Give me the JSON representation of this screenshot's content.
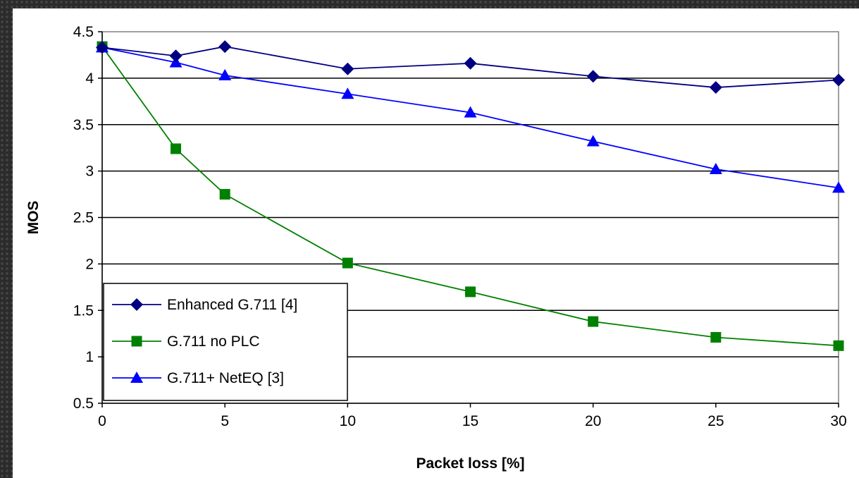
{
  "chart_data": {
    "type": "line",
    "xlabel": "Packet loss [%]",
    "ylabel": "MOS",
    "xlim": [
      0,
      30
    ],
    "ylim": [
      0.5,
      4.5
    ],
    "x_ticks": [
      0,
      5,
      10,
      15,
      20,
      25,
      30
    ],
    "y_ticks": [
      0.5,
      1,
      1.5,
      2,
      2.5,
      3,
      3.5,
      4,
      4.5
    ],
    "y_tick_labels": [
      "0.5",
      "1",
      "1.5",
      "2",
      "2.5",
      "3",
      "3.5",
      "4",
      "4.5"
    ],
    "grid": "horizontal",
    "legend_position": "bottom-left",
    "series": [
      {
        "name": "Enhanced G.711 [4]",
        "marker": "diamond",
        "color": "#000080",
        "x": [
          0,
          3,
          5,
          10,
          15,
          20,
          25,
          30
        ],
        "values": [
          4.33,
          4.24,
          4.34,
          4.1,
          4.16,
          4.02,
          3.9,
          3.98
        ]
      },
      {
        "name": "G.711 no PLC",
        "marker": "square",
        "color": "#008000",
        "x": [
          0,
          3,
          5,
          10,
          15,
          20,
          25,
          30
        ],
        "values": [
          4.34,
          3.24,
          2.75,
          2.01,
          1.7,
          1.38,
          1.21,
          1.12
        ]
      },
      {
        "name": "G.711+ NetEQ [3]",
        "marker": "triangle",
        "color": "#0000ff",
        "x": [
          0,
          3,
          5,
          10,
          15,
          20,
          25,
          30
        ],
        "values": [
          4.33,
          4.17,
          4.03,
          3.83,
          3.63,
          3.32,
          3.02,
          2.82
        ]
      }
    ]
  }
}
